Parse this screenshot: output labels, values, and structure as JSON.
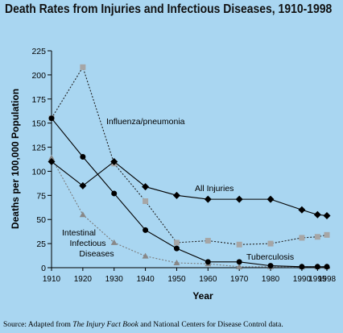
{
  "chart_data": {
    "type": "line",
    "title": "Death Rates from Injuries and Infectious Diseases, 1910-1998",
    "xlabel": "Year",
    "ylabel": "Deaths per 100,000 Population",
    "x": [
      1910,
      1920,
      1930,
      1940,
      1950,
      1960,
      1970,
      1980,
      1990,
      1995,
      1998
    ],
    "x_tick_labels": [
      "1910",
      "1920",
      "1930",
      "1940",
      "1950",
      "1960",
      "1970",
      "1980",
      "1990",
      "1995",
      "1998"
    ],
    "ylim": [
      0,
      225
    ],
    "y_ticks": [
      0,
      25,
      50,
      75,
      100,
      125,
      150,
      175,
      200,
      225
    ],
    "grid": false,
    "series": [
      {
        "name": "All Injuries",
        "label": "All Injuries",
        "marker": "diamond",
        "line": "solid",
        "color": "#000000",
        "values": [
          110,
          85,
          110,
          84,
          75,
          71,
          71,
          71,
          60,
          55,
          54
        ]
      },
      {
        "name": "Influenza/pneumonia",
        "label": "Influenza/pneumonia",
        "marker": "square",
        "line": "dotted",
        "color": "#a6a6a6",
        "values": [
          155,
          208,
          108,
          69,
          26,
          28,
          24,
          25,
          31,
          32,
          34
        ]
      },
      {
        "name": "Tuberculosis",
        "label": "Tuberculosis",
        "marker": "circle",
        "line": "solid",
        "color": "#000000",
        "values": [
          155,
          115,
          77,
          39,
          20,
          6,
          6,
          2,
          1,
          1,
          1
        ]
      },
      {
        "name": "Intestinal Infectious Diseases",
        "label_lines": [
          "Intestinal",
          "Infectious",
          "Diseases"
        ],
        "marker": "triangle",
        "line": "dotted",
        "color": "#888888",
        "values": [
          114,
          55,
          26,
          12,
          5,
          4,
          1,
          1,
          1,
          1,
          1
        ]
      }
    ]
  },
  "source": {
    "prefix": "Source: Adapted from ",
    "publication": "The Injury Fact Book",
    "suffix": " and National Centers for Disease Control data."
  }
}
